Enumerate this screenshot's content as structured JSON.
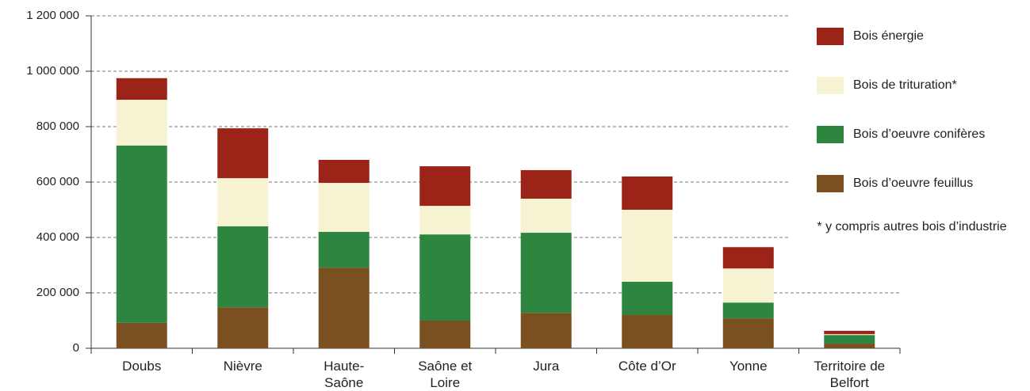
{
  "chart_data": {
    "type": "stacked_bar",
    "categories": [
      "Doubs",
      "Nièvre",
      "Haute-Saône",
      "Saône et Loire",
      "Jura",
      "Côte d’Or",
      "Yonne",
      "Territoire de Belfort"
    ],
    "series": [
      {
        "name": "Bois d’oeuvre feuillus",
        "color": "#7a5020",
        "values": [
          92000,
          148000,
          291000,
          100000,
          128000,
          120000,
          108000,
          17000
        ]
      },
      {
        "name": "Bois d’oeuvre conifères",
        "color": "#2e8540",
        "values": [
          640000,
          292000,
          129000,
          311000,
          289000,
          120000,
          57000,
          31000
        ]
      },
      {
        "name": "Bois de trituration*",
        "color": "#f6f3d3",
        "values": [
          165000,
          174000,
          177000,
          103000,
          123000,
          260000,
          123000,
          3000
        ]
      },
      {
        "name": "Bois énergie",
        "color": "#9b2318",
        "values": [
          78000,
          180000,
          83000,
          143000,
          103000,
          120000,
          77000,
          12000
        ]
      }
    ],
    "ylim": [
      0,
      1200000
    ],
    "yticks": [
      0,
      {
        "value": 200000,
        "label": "200 000"
      },
      {
        "value": 400000,
        "label": "400 000"
      },
      {
        "value": 600000,
        "label": "600 000"
      },
      {
        "value": 800000,
        "label": "800 000"
      },
      {
        "value": 1000000,
        "label": "1 000 000"
      },
      {
        "value": 1200000,
        "label": "1 200 000"
      }
    ],
    "grid": true,
    "legend": "right",
    "note": "* y compris autres bois d’industrie"
  }
}
